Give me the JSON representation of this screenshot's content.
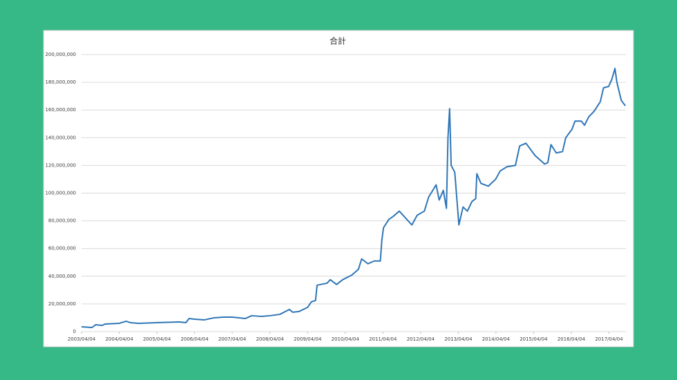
{
  "chart_data": {
    "type": "line",
    "title": "合計",
    "x": [
      "2003/04/04",
      "2003/07/15",
      "2003/08/20",
      "2003/10/20",
      "2003/11/20",
      "2004/04/04",
      "2004/06/10",
      "2004/07/20",
      "2004/10/10",
      "2005/04/04",
      "2005/11/10",
      "2006/01/10",
      "2006/02/10",
      "2006/04/04",
      "2006/07/10",
      "2006/10/10",
      "2007/01/10",
      "2007/04/04",
      "2007/08/10",
      "2007/10/10",
      "2008/01/10",
      "2008/04/04",
      "2008/07/10",
      "2008/10/10",
      "2008/11/10",
      "2009/01/10",
      "2009/04/04",
      "2009/05/10",
      "2009/06/20",
      "2009/07/05",
      "2009/10/10",
      "2009/11/10",
      "2010/01/10",
      "2010/03/10",
      "2010/06/10",
      "2010/08/10",
      "2010/09/10",
      "2010/11/10",
      "2011/01/10",
      "2011/03/10",
      "2011/03/25",
      "2011/04/10",
      "2011/06/01",
      "2011/07/10",
      "2011/09/10",
      "2011/11/10",
      "2012/01/10",
      "2012/03/01",
      "2012/05/10",
      "2012/06/20",
      "2012/09/01",
      "2012/10/01",
      "2012/11/10",
      "2012/12/10",
      "2012/12/25",
      "2013/01/10",
      "2013/01/25",
      "2013/03/01",
      "2013/04/10",
      "2013/05/20",
      "2013/07/01",
      "2013/08/15",
      "2013/09/20",
      "2013/10/01",
      "2013/11/10",
      "2014/01/20",
      "2014/04/01",
      "2014/05/15",
      "2014/07/20",
      "2014/10/10",
      "2014/11/20",
      "2015/01/20",
      "2015/04/20",
      "2015/07/20",
      "2015/08/20",
      "2015/09/20",
      "2015/11/10",
      "2016/01/10",
      "2016/02/10",
      "2016/04/10",
      "2016/05/10",
      "2016/07/10",
      "2016/08/10",
      "2016/09/20",
      "2016/11/10",
      "2017/01/10",
      "2017/02/10",
      "2017/04/01",
      "2017/05/01",
      "2017/06/01",
      "2017/06/20",
      "2017/08/01",
      "2017/09/10"
    ],
    "series": [
      {
        "color": "#2e75b6",
        "values": [
          3500000,
          3000000,
          5000000,
          4500000,
          5500000,
          6000000,
          7500000,
          6500000,
          6000000,
          6500000,
          7000000,
          6500000,
          9500000,
          9000000,
          8500000,
          10000000,
          10500000,
          10500000,
          9500000,
          11500000,
          11000000,
          11500000,
          12500000,
          16000000,
          14000000,
          14500000,
          17500000,
          21500000,
          22500000,
          33500000,
          35000000,
          37500000,
          34000000,
          37500000,
          41000000,
          45000000,
          52500000,
          49000000,
          51000000,
          51000000,
          66000000,
          75000000,
          81000000,
          83000000,
          87000000,
          82000000,
          77000000,
          84000000,
          87000000,
          97000000,
          106000000,
          95000000,
          102000000,
          89000000,
          140000000,
          161000000,
          120000000,
          115000000,
          77000000,
          90000000,
          87000000,
          94000000,
          96000000,
          114000000,
          107000000,
          105000000,
          110000000,
          116000000,
          119000000,
          120000000,
          134000000,
          136000000,
          127000000,
          121000000,
          122000000,
          135000000,
          129000000,
          130000000,
          140000000,
          146000000,
          152000000,
          152000000,
          149000000,
          155000000,
          159000000,
          166000000,
          176000000,
          177000000,
          182000000,
          190000000,
          180000000,
          167000000,
          163000000
        ]
      }
    ],
    "xlim": [
      "2003/04/04",
      "2017/09/15"
    ],
    "xticks": [
      "2003/04/04",
      "2004/04/04",
      "2005/04/04",
      "2006/04/04",
      "2007/04/04",
      "2008/04/04",
      "2009/04/04",
      "2010/04/04",
      "2011/04/04",
      "2012/04/04",
      "2013/04/04",
      "2014/04/04",
      "2015/04/04",
      "2016/04/04",
      "2017/04/04"
    ],
    "ylim": [
      0,
      200000000
    ],
    "yticks": [
      0,
      {
        "value": 20000000,
        "label": "20,000,000"
      },
      {
        "value": 40000000,
        "label": "40,000,000"
      },
      {
        "value": 60000000,
        "label": "60,000,000"
      },
      {
        "value": 80000000,
        "label": "80,000,000"
      },
      {
        "value": 100000000,
        "label": "100,000,000"
      },
      {
        "value": 120000000,
        "label": "120,000,000"
      },
      {
        "value": 140000000,
        "label": "140,000,000"
      },
      {
        "value": 160000000,
        "label": "160,000,000"
      },
      {
        "value": 180000000,
        "label": "180,000,000"
      },
      {
        "value": 200000000,
        "label": "200,000,000"
      }
    ],
    "grid": true
  }
}
